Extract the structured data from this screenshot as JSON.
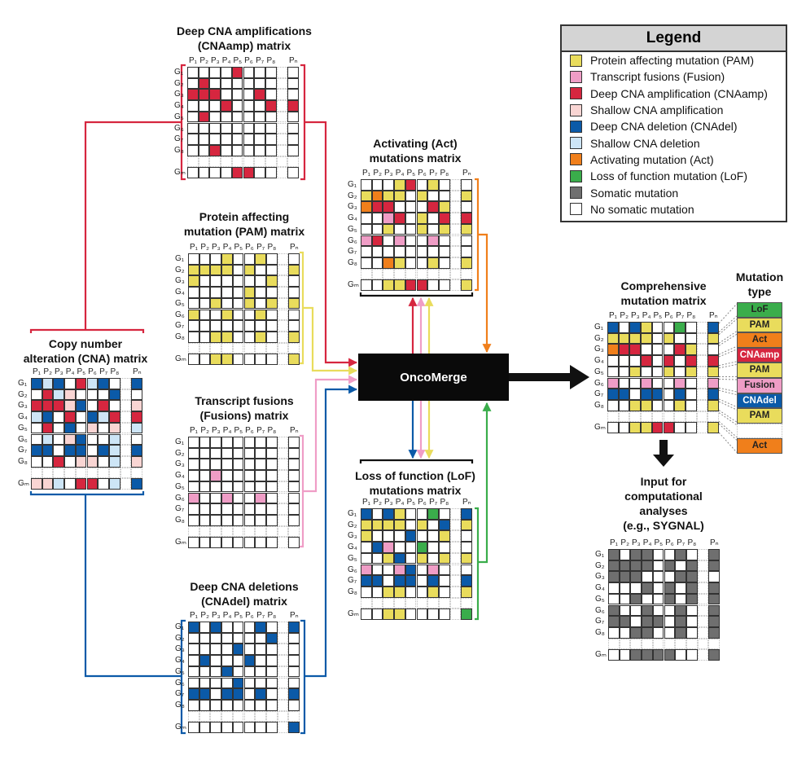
{
  "colors": {
    "Y": "#e9dc5c",
    "K": "#ef9dc6",
    "R": "#d6263f",
    "r": "#f9d5d3",
    "B": "#0b5aa8",
    "b": "#cde5f6",
    "O": "#f07f1b",
    "G": "#3aad4b",
    "S": "#6f6f6f",
    ".": "#ffffff"
  },
  "column_labels": [
    "P₁",
    "P₂",
    "P₃",
    "P₄",
    "P₅",
    "P₆",
    "P₇",
    "P₈",
    "",
    "Pₙ"
  ],
  "row_labels": [
    "G₁",
    "G₂",
    "G₃",
    "G₄",
    "G₅",
    "G₆",
    "G₇",
    "G₈",
    "",
    "Gₘ"
  ],
  "matrices": [
    {
      "id": "cnaamp",
      "title": [
        "Deep CNA amplifications",
        "(CNAamp) matrix"
      ],
      "rows": [
        "....R....",
        ".R.......",
        "RRR...R..",
        "...R...RR",
        ".R.......",
        ".........",
        ".........",
        "..R......",
        "....RR..."
      ]
    },
    {
      "id": "pam",
      "title": [
        "Protein affecting",
        "mutation (PAM) matrix"
      ],
      "rows": [
        "...Y..Y..",
        "YYYY.Y..Y",
        "Y......Y.",
        ".....Y...",
        "..Y..Y.YY",
        "Y..Y..Y..",
        ".........",
        "..YY..Y.Y",
        "..YY....Y"
      ]
    },
    {
      "id": "fusions",
      "title": [
        "Transcript fusions",
        "(Fusions) matrix"
      ],
      "rows": [
        ".........",
        ".........",
        ".........",
        "..K......",
        ".........",
        "K..K..K..",
        ".........",
        ".........",
        "........."
      ]
    },
    {
      "id": "cnadel",
      "title": [
        "Deep CNA deletions",
        "(CNAdel) matrix"
      ],
      "rows": [
        "B.B...B.B",
        ".......B.",
        "....B....",
        ".B...B...",
        "...B.....",
        "....B....",
        "BB.BB.B.B",
        ".........",
        "........B"
      ]
    },
    {
      "id": "cna",
      "title": [
        "Copy number",
        "alteration (CNA) matrix"
      ],
      "rows": [
        "BbB.RbB.B",
        ".Rbr...B.",
        "RRRrB.R.r",
        "bB.R.BbRR",
        ".R.B.r.rb",
        ".b.rB..b.",
        "BB.BB.BbB",
        "..R.rr.br",
        "rrb.RR.bB"
      ]
    },
    {
      "id": "act",
      "title": [
        "Activating (Act)",
        "mutations matrix"
      ],
      "rows": [
        "...YR.Y..",
        "YOYY.Y..Y",
        "ORR...RY.",
        "..KR.Y.RR",
        "..Y..Y.YY",
        "KR.K..K..",
        ".........",
        "..OY..Y.Y",
        "..YYRR..Y"
      ]
    },
    {
      "id": "lof",
      "title": [
        "Loss of function (LoF)",
        "mutations matrix"
      ],
      "rows": [
        "B.BY..G.B",
        "YYYY.Y.BY",
        "Y...B..Y.",
        ".BK..G...",
        "..YB.Y.YY",
        "K..KB.K..",
        "BB.BB.B.B",
        "..YY..Y.Y",
        "..YY....G"
      ]
    },
    {
      "id": "comprehensive",
      "title": [
        "Comprehensive",
        "mutation matrix"
      ],
      "rows": [
        "B.BY..G.B",
        "YYYY.Y..Y",
        "ORR...RY.",
        "...R.R.RR",
        "..Y..Y.YY",
        "K..K..K.K",
        "BB.BB.B.B",
        "..YY..Y.Y",
        "..YYRR..Y"
      ]
    },
    {
      "id": "input",
      "title": [
        "Input for",
        "computational",
        "analyses",
        "(e.g., SYGNAL)"
      ],
      "rows": [
        "S.SS..S.S",
        "SSSS.S.SS",
        "SSS...SS.",
        "...S.S.SS",
        "..S..S.SS",
        "S..S..S.S",
        "SS.SS.S.S",
        "..SS..S.S",
        "..SSSS..S"
      ]
    }
  ],
  "oncomerge": {
    "label": "OncoMerge"
  },
  "legend": {
    "title": "Legend",
    "items": [
      {
        "code": "Y",
        "label": "Protein affecting mutation (PAM)"
      },
      {
        "code": "K",
        "label": "Transcript fusions (Fusion)"
      },
      {
        "code": "R",
        "label": "Deep CNA amplification (CNAamp)"
      },
      {
        "code": "r",
        "label": "Shallow CNA amplification"
      },
      {
        "code": "B",
        "label": "Deep CNA deletion (CNAdel)"
      },
      {
        "code": "b",
        "label": "Shallow CNA deletion"
      },
      {
        "code": "O",
        "label": "Activating mutation (Act)"
      },
      {
        "code": "G",
        "label": "Loss of function mutation (LoF)"
      },
      {
        "code": "S",
        "label": "Somatic mutation"
      },
      {
        "code": ".",
        "label": "No somatic mutation"
      }
    ]
  },
  "mutation_type": {
    "title": [
      "Mutation",
      "type"
    ],
    "items": [
      {
        "label": "LoF",
        "code": "G"
      },
      {
        "label": "PAM",
        "code": "Y"
      },
      {
        "label": "Act",
        "code": "O"
      },
      {
        "label": "CNAamp",
        "code": "R"
      },
      {
        "label": "PAM",
        "code": "Y"
      },
      {
        "label": "Fusion",
        "code": "K"
      },
      {
        "label": "CNAdel",
        "code": "B"
      },
      {
        "label": "PAM",
        "code": "Y"
      },
      {
        "label": "",
        "code": ""
      },
      {
        "label": "Act",
        "code": "O"
      }
    ]
  }
}
